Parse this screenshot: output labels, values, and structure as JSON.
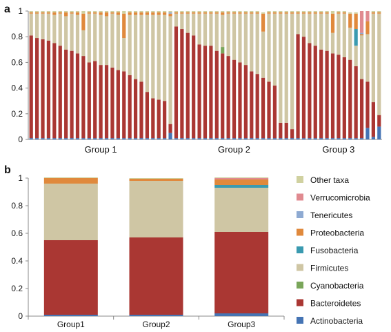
{
  "panels": {
    "a": {
      "label": "a"
    },
    "b": {
      "label": "b"
    }
  },
  "colors": {
    "Other taxa": "#D0D1A0",
    "Verrucomicrobia": "#E08A90",
    "Tenericutes": "#8EAAD2",
    "Proteobacteria": "#E0893C",
    "Fusobacteria": "#3A9AB0",
    "Firmicutes": "#CFC6A4",
    "Cyanobacteria": "#7AA65A",
    "Bacteroidetes": "#AA3733",
    "Actinobacteria": "#4574B4"
  },
  "chart_data": [
    {
      "type": "bar",
      "stacked": true,
      "panel": "a",
      "ylim": [
        0,
        1
      ],
      "yticks": [
        "0",
        "0.2",
        "0.4",
        "0.6",
        "0.8",
        "1"
      ],
      "groups": [
        {
          "label": "Group 1",
          "n_samples": 25
        },
        {
          "label": "Group 2",
          "n_samples": 21
        },
        {
          "label": "Group 3",
          "n_samples": 15
        }
      ],
      "series_order": [
        "Actinobacteria",
        "Bacteroidetes",
        "Cyanobacteria",
        "Firmicutes",
        "Fusobacteria",
        "Proteobacteria",
        "Tenericutes",
        "Verrucomicrobia",
        "Other taxa"
      ],
      "samples": [
        {
          "Actinobacteria": 0.01,
          "Bacteroidetes": 0.8,
          "Firmicutes": 0.17,
          "Proteobacteria": 0.01,
          "Other taxa": 0.01
        },
        {
          "Actinobacteria": 0.01,
          "Bacteroidetes": 0.78,
          "Firmicutes": 0.19,
          "Proteobacteria": 0.01,
          "Other taxa": 0.01
        },
        {
          "Actinobacteria": 0.01,
          "Bacteroidetes": 0.77,
          "Firmicutes": 0.2,
          "Proteobacteria": 0.01,
          "Other taxa": 0.01
        },
        {
          "Actinobacteria": 0.01,
          "Bacteroidetes": 0.76,
          "Firmicutes": 0.21,
          "Proteobacteria": 0.01,
          "Other taxa": 0.01
        },
        {
          "Actinobacteria": 0.01,
          "Bacteroidetes": 0.74,
          "Firmicutes": 0.22,
          "Proteobacteria": 0.02,
          "Other taxa": 0.01
        },
        {
          "Actinobacteria": 0.01,
          "Bacteroidetes": 0.72,
          "Firmicutes": 0.25,
          "Proteobacteria": 0.01,
          "Other taxa": 0.01
        },
        {
          "Actinobacteria": 0.01,
          "Bacteroidetes": 0.69,
          "Firmicutes": 0.26,
          "Proteobacteria": 0.03,
          "Other taxa": 0.01
        },
        {
          "Actinobacteria": 0.01,
          "Bacteroidetes": 0.68,
          "Firmicutes": 0.29,
          "Proteobacteria": 0.01,
          "Other taxa": 0.01
        },
        {
          "Actinobacteria": 0.01,
          "Bacteroidetes": 0.66,
          "Firmicutes": 0.3,
          "Proteobacteria": 0.02,
          "Other taxa": 0.01
        },
        {
          "Actinobacteria": 0.01,
          "Bacteroidetes": 0.64,
          "Firmicutes": 0.2,
          "Proteobacteria": 0.13,
          "Other taxa": 0.02
        },
        {
          "Actinobacteria": 0.01,
          "Bacteroidetes": 0.59,
          "Firmicutes": 0.38,
          "Proteobacteria": 0.01,
          "Other taxa": 0.01
        },
        {
          "Actinobacteria": 0.01,
          "Bacteroidetes": 0.6,
          "Firmicutes": 0.37,
          "Proteobacteria": 0.01,
          "Other taxa": 0.01
        },
        {
          "Actinobacteria": 0.01,
          "Bacteroidetes": 0.57,
          "Firmicutes": 0.39,
          "Proteobacteria": 0.02,
          "Other taxa": 0.01
        },
        {
          "Actinobacteria": 0.01,
          "Bacteroidetes": 0.57,
          "Firmicutes": 0.38,
          "Proteobacteria": 0.03,
          "Other taxa": 0.01
        },
        {
          "Actinobacteria": 0.01,
          "Bacteroidetes": 0.55,
          "Firmicutes": 0.42,
          "Proteobacteria": 0.01,
          "Other taxa": 0.01
        },
        {
          "Actinobacteria": 0.01,
          "Bacteroidetes": 0.53,
          "Firmicutes": 0.43,
          "Proteobacteria": 0.02,
          "Other taxa": 0.01
        },
        {
          "Actinobacteria": 0.01,
          "Bacteroidetes": 0.52,
          "Firmicutes": 0.26,
          "Proteobacteria": 0.19,
          "Other taxa": 0.02
        },
        {
          "Actinobacteria": 0.01,
          "Bacteroidetes": 0.49,
          "Firmicutes": 0.47,
          "Proteobacteria": 0.02,
          "Other taxa": 0.01
        },
        {
          "Actinobacteria": 0.01,
          "Bacteroidetes": 0.46,
          "Firmicutes": 0.5,
          "Proteobacteria": 0.02,
          "Other taxa": 0.01
        },
        {
          "Actinobacteria": 0.01,
          "Bacteroidetes": 0.44,
          "Firmicutes": 0.52,
          "Proteobacteria": 0.02,
          "Other taxa": 0.01
        },
        {
          "Actinobacteria": 0.01,
          "Bacteroidetes": 0.36,
          "Firmicutes": 0.6,
          "Proteobacteria": 0.02,
          "Other taxa": 0.01
        },
        {
          "Actinobacteria": 0.01,
          "Bacteroidetes": 0.31,
          "Firmicutes": 0.65,
          "Proteobacteria": 0.02,
          "Other taxa": 0.01
        },
        {
          "Actinobacteria": 0.01,
          "Bacteroidetes": 0.3,
          "Firmicutes": 0.66,
          "Proteobacteria": 0.02,
          "Other taxa": 0.01
        },
        {
          "Actinobacteria": 0.01,
          "Bacteroidetes": 0.29,
          "Firmicutes": 0.67,
          "Proteobacteria": 0.02,
          "Other taxa": 0.01
        },
        {
          "Actinobacteria": 0.05,
          "Bacteroidetes": 0.07,
          "Firmicutes": 0.84,
          "Proteobacteria": 0.02,
          "Tenericutes": 0.01,
          "Other taxa": 0.01
        },
        {
          "Actinobacteria": 0.01,
          "Bacteroidetes": 0.87,
          "Firmicutes": 0.1,
          "Proteobacteria": 0.01,
          "Other taxa": 0.01
        },
        {
          "Actinobacteria": 0.01,
          "Bacteroidetes": 0.85,
          "Firmicutes": 0.12,
          "Proteobacteria": 0.01,
          "Other taxa": 0.01
        },
        {
          "Actinobacteria": 0.01,
          "Bacteroidetes": 0.82,
          "Firmicutes": 0.15,
          "Proteobacteria": 0.01,
          "Other taxa": 0.01
        },
        {
          "Actinobacteria": 0.01,
          "Bacteroidetes": 0.8,
          "Firmicutes": 0.17,
          "Proteobacteria": 0.01,
          "Other taxa": 0.01
        },
        {
          "Actinobacteria": 0.01,
          "Bacteroidetes": 0.73,
          "Firmicutes": 0.24,
          "Proteobacteria": 0.01,
          "Other taxa": 0.01
        },
        {
          "Actinobacteria": 0.01,
          "Bacteroidetes": 0.72,
          "Firmicutes": 0.25,
          "Proteobacteria": 0.01,
          "Other taxa": 0.01
        },
        {
          "Actinobacteria": 0.01,
          "Bacteroidetes": 0.72,
          "Firmicutes": 0.25,
          "Proteobacteria": 0.01,
          "Other taxa": 0.01
        },
        {
          "Actinobacteria": 0.01,
          "Bacteroidetes": 0.68,
          "Firmicutes": 0.29,
          "Proteobacteria": 0.01,
          "Other taxa": 0.01
        },
        {
          "Actinobacteria": 0.01,
          "Bacteroidetes": 0.66,
          "Firmicutes": 0.25,
          "Cyanobacteria": 0.05,
          "Proteobacteria": 0.02,
          "Other taxa": 0.01
        },
        {
          "Actinobacteria": 0.01,
          "Bacteroidetes": 0.64,
          "Firmicutes": 0.33,
          "Proteobacteria": 0.01,
          "Other taxa": 0.01
        },
        {
          "Actinobacteria": 0.01,
          "Bacteroidetes": 0.61,
          "Firmicutes": 0.36,
          "Proteobacteria": 0.01,
          "Other taxa": 0.01
        },
        {
          "Actinobacteria": 0.01,
          "Bacteroidetes": 0.59,
          "Firmicutes": 0.38,
          "Proteobacteria": 0.01,
          "Other taxa": 0.01
        },
        {
          "Actinobacteria": 0.01,
          "Bacteroidetes": 0.57,
          "Firmicutes": 0.4,
          "Proteobacteria": 0.01,
          "Other taxa": 0.01
        },
        {
          "Actinobacteria": 0.01,
          "Bacteroidetes": 0.52,
          "Firmicutes": 0.45,
          "Proteobacteria": 0.01,
          "Other taxa": 0.01
        },
        {
          "Actinobacteria": 0.01,
          "Bacteroidetes": 0.5,
          "Firmicutes": 0.47,
          "Proteobacteria": 0.01,
          "Other taxa": 0.01
        },
        {
          "Actinobacteria": 0.01,
          "Bacteroidetes": 0.47,
          "Firmicutes": 0.36,
          "Proteobacteria": 0.14,
          "Other taxa": 0.01
        },
        {
          "Actinobacteria": 0.01,
          "Bacteroidetes": 0.44,
          "Firmicutes": 0.53,
          "Proteobacteria": 0.01,
          "Other taxa": 0.01
        },
        {
          "Actinobacteria": 0.01,
          "Bacteroidetes": 0.41,
          "Firmicutes": 0.56,
          "Proteobacteria": 0.01,
          "Other taxa": 0.01
        },
        {
          "Actinobacteria": 0.01,
          "Bacteroidetes": 0.12,
          "Firmicutes": 0.85,
          "Proteobacteria": 0.01,
          "Other taxa": 0.01
        },
        {
          "Actinobacteria": 0.01,
          "Bacteroidetes": 0.12,
          "Firmicutes": 0.85,
          "Proteobacteria": 0.01,
          "Other taxa": 0.01
        },
        {
          "Actinobacteria": 0.01,
          "Bacteroidetes": 0.07,
          "Firmicutes": 0.9,
          "Proteobacteria": 0.01,
          "Other taxa": 0.01
        },
        {
          "Actinobacteria": 0.01,
          "Bacteroidetes": 0.81,
          "Firmicutes": 0.16,
          "Proteobacteria": 0.01,
          "Other taxa": 0.01
        },
        {
          "Actinobacteria": 0.01,
          "Bacteroidetes": 0.79,
          "Firmicutes": 0.18,
          "Proteobacteria": 0.01,
          "Other taxa": 0.01
        },
        {
          "Actinobacteria": 0.01,
          "Bacteroidetes": 0.74,
          "Firmicutes": 0.23,
          "Proteobacteria": 0.01,
          "Other taxa": 0.01
        },
        {
          "Actinobacteria": 0.01,
          "Bacteroidetes": 0.72,
          "Firmicutes": 0.25,
          "Proteobacteria": 0.01,
          "Other taxa": 0.01
        },
        {
          "Actinobacteria": 0.01,
          "Bacteroidetes": 0.69,
          "Firmicutes": 0.28,
          "Proteobacteria": 0.01,
          "Other taxa": 0.01
        },
        {
          "Actinobacteria": 0.01,
          "Bacteroidetes": 0.68,
          "Firmicutes": 0.29,
          "Proteobacteria": 0.01,
          "Other taxa": 0.01
        },
        {
          "Actinobacteria": 0.01,
          "Bacteroidetes": 0.66,
          "Firmicutes": 0.16,
          "Proteobacteria": 0.15,
          "Other taxa": 0.02
        },
        {
          "Actinobacteria": 0.01,
          "Bacteroidetes": 0.65,
          "Firmicutes": 0.32,
          "Proteobacteria": 0.01,
          "Other taxa": 0.01
        },
        {
          "Actinobacteria": 0.01,
          "Bacteroidetes": 0.63,
          "Firmicutes": 0.34,
          "Proteobacteria": 0.01,
          "Other taxa": 0.01
        },
        {
          "Actinobacteria": 0.01,
          "Bacteroidetes": 0.61,
          "Firmicutes": 0.25,
          "Proteobacteria": 0.11,
          "Other taxa": 0.01
        },
        {
          "Actinobacteria": 0.01,
          "Bacteroidetes": 0.56,
          "Firmicutes": 0.16,
          "Fusobacteria": 0.13,
          "Proteobacteria": 0.12,
          "Other taxa": 0.01
        },
        {
          "Actinobacteria": 0.01,
          "Bacteroidetes": 0.46,
          "Firmicutes": 0.34,
          "Proteobacteria": 0.01,
          "Tenericutes": 0.01,
          "Verrucomicrobia": 0.17
        },
        {
          "Actinobacteria": 0.09,
          "Bacteroidetes": 0.36,
          "Firmicutes": 0.37,
          "Proteobacteria": 0.1,
          "Verrucomicrobia": 0.08
        },
        {
          "Actinobacteria": 0.02,
          "Bacteroidetes": 0.27,
          "Firmicutes": 0.69,
          "Proteobacteria": 0.01,
          "Other taxa": 0.01
        },
        {
          "Actinobacteria": 0.1,
          "Bacteroidetes": 0.09,
          "Firmicutes": 0.79,
          "Proteobacteria": 0.01,
          "Other taxa": 0.01
        }
      ]
    },
    {
      "type": "bar",
      "stacked": true,
      "panel": "b",
      "ylim": [
        0,
        1
      ],
      "yticks": [
        "0",
        "0.2",
        "0.4",
        "0.6",
        "0.8",
        "1"
      ],
      "categories": [
        "Group1",
        "Group2",
        "Group3"
      ],
      "series": [
        {
          "name": "Actinobacteria",
          "values": [
            0.01,
            0.01,
            0.02
          ]
        },
        {
          "name": "Bacteroidetes",
          "values": [
            0.54,
            0.56,
            0.59
          ]
        },
        {
          "name": "Cyanobacteria",
          "values": [
            0.0,
            0.0,
            0.0
          ]
        },
        {
          "name": "Firmicutes",
          "values": [
            0.41,
            0.41,
            0.32
          ]
        },
        {
          "name": "Fusobacteria",
          "values": [
            0.0,
            0.0,
            0.02
          ]
        },
        {
          "name": "Proteobacteria",
          "values": [
            0.04,
            0.015,
            0.04
          ]
        },
        {
          "name": "Tenericutes",
          "values": [
            0.0,
            0.0,
            0.0
          ]
        },
        {
          "name": "Verrucomicrobia",
          "values": [
            0.0,
            0.0,
            0.01
          ]
        },
        {
          "name": "Other taxa",
          "values": [
            0.005,
            0.005,
            0.005
          ]
        }
      ],
      "legend": {
        "placement": "right",
        "entries": [
          "Other taxa",
          "Verrucomicrobia",
          "Tenericutes",
          "Proteobacteria",
          "Fusobacteria",
          "Firmicutes",
          "Cyanobacteria",
          "Bacteroidetes",
          "Actinobacteria"
        ]
      }
    }
  ]
}
